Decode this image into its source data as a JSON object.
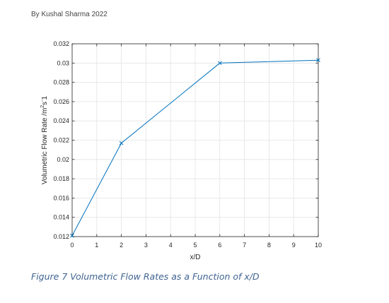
{
  "byline": "By Kushal Sharma 2022",
  "caption": "Figure 7 Volumetric Flow Rates as a Function of x/D",
  "chart_data": {
    "type": "line",
    "x": [
      0,
      2,
      6,
      10
    ],
    "series": [
      {
        "values": [
          0.0121,
          0.0217,
          0.03,
          0.0303
        ]
      }
    ],
    "xlabel": "x/D",
    "ylabel": "Volumetric Flow Rate /m^2s^-1",
    "xlim": [
      0,
      10
    ],
    "ylim": [
      0.012,
      0.032
    ],
    "xticks": [
      0,
      1,
      2,
      3,
      4,
      5,
      6,
      7,
      8,
      9,
      10
    ],
    "yticks": [
      0.012,
      0.014,
      0.016,
      0.018,
      0.02,
      0.022,
      0.024,
      0.026,
      0.028,
      0.03,
      0.032
    ],
    "xtick_labels": [
      "0",
      "1",
      "2",
      "3",
      "4",
      "5",
      "6",
      "7",
      "8",
      "9",
      "10"
    ],
    "ytick_labels": [
      "0.012",
      "0.014",
      "0.016",
      "0.018",
      "0.02",
      "0.022",
      "0.024",
      "0.026",
      "0.028",
      "0.03",
      "0.032"
    ],
    "grid": true,
    "marker": "x",
    "line_color": "#0072bd"
  }
}
